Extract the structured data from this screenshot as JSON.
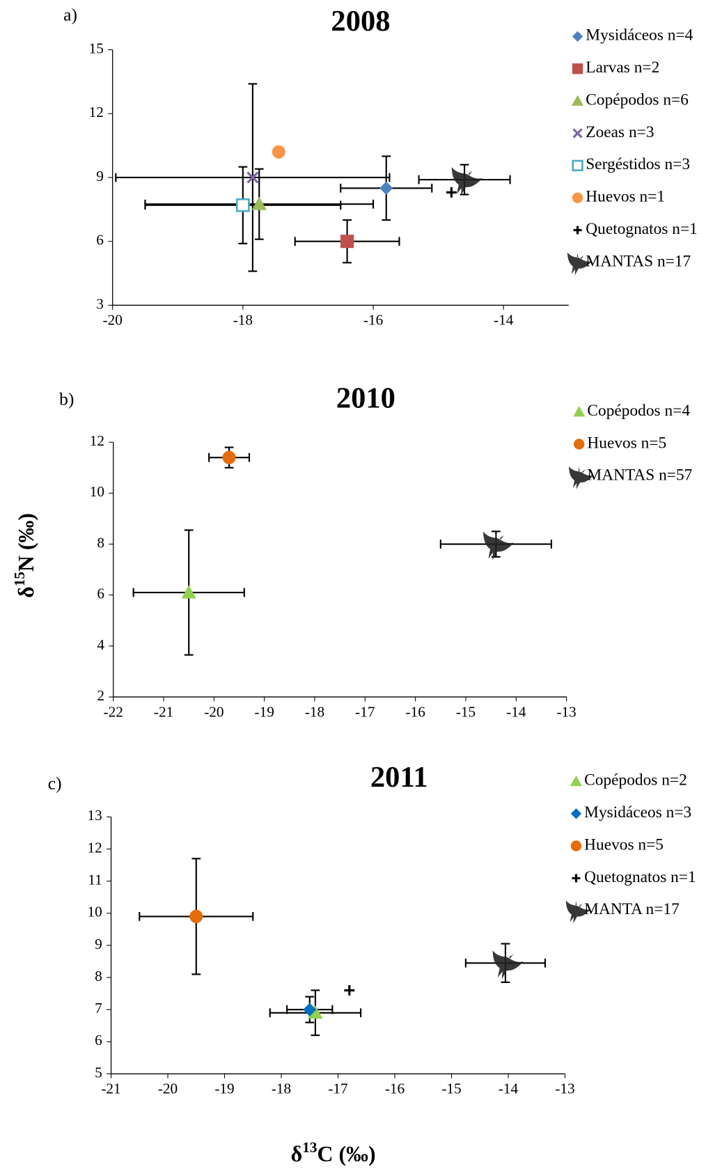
{
  "chart_data": [
    {
      "type": "scatter",
      "panel": "a)",
      "title": "2008",
      "xlim": [
        -20,
        -13
      ],
      "ylim": [
        3,
        15
      ],
      "xticks": [
        -20,
        -18,
        -16,
        -14
      ],
      "yticks": [
        3,
        6,
        9,
        12,
        15
      ],
      "series": [
        {
          "name": "Mysidáceos n=4",
          "color": "#4f81bd",
          "marker": "diamond",
          "x": [
            -15.8
          ],
          "y": [
            8.5
          ],
          "xerr": [
            0.7
          ],
          "yerr": [
            1.5
          ]
        },
        {
          "name": "Larvas n=2",
          "color": "#c0504d",
          "marker": "square",
          "x": [
            -16.4
          ],
          "y": [
            6.0
          ],
          "xerr": [
            0.8
          ],
          "yerr": [
            1.0
          ]
        },
        {
          "name": "Copépodos n=6",
          "color": "#9bbb59",
          "marker": "triangle",
          "x": [
            -17.75
          ],
          "y": [
            7.75
          ],
          "xerr": [
            1.75
          ],
          "yerr": [
            1.65
          ]
        },
        {
          "name": "Zoeas n=3",
          "color": "#8064a2",
          "marker": "x",
          "x": [
            -17.85
          ],
          "y": [
            9.0
          ],
          "xerr": [
            2.1
          ],
          "yerr": [
            4.4
          ]
        },
        {
          "name": "Sergéstidos n=3",
          "color": "#4bacc6",
          "marker": "open-square",
          "x": [
            -18.0
          ],
          "y": [
            7.7
          ],
          "xerr": [
            1.5
          ],
          "yerr": [
            1.8
          ]
        },
        {
          "name": "Huevos n=1",
          "color": "#f79646",
          "marker": "circle",
          "x": [
            -17.45
          ],
          "y": [
            10.2
          ]
        },
        {
          "name": "Quetognatos n=1",
          "color": "#000000",
          "marker": "plus",
          "x": [
            -14.8
          ],
          "y": [
            8.3
          ]
        },
        {
          "name": "MANTAS n=17",
          "color": "#222222",
          "marker": "manta",
          "x": [
            -14.6
          ],
          "y": [
            8.9
          ],
          "xerr": [
            0.7
          ],
          "yerr": [
            0.7
          ]
        }
      ]
    },
    {
      "type": "scatter",
      "panel": "b)",
      "title": "2010",
      "xlim": [
        -22,
        -13
      ],
      "ylim": [
        2,
        12
      ],
      "xticks": [
        -22,
        -21,
        -20,
        -19,
        -18,
        -17,
        -16,
        -15,
        -14,
        -13
      ],
      "yticks": [
        2,
        4,
        6,
        8,
        10,
        12
      ],
      "ylabel": {
        "prefix": "δ",
        "sup": "15",
        "suffix": "N (‰)"
      },
      "series": [
        {
          "name": "Copépodos n=4",
          "color": "#92d050",
          "marker": "triangle",
          "x": [
            -20.5
          ],
          "y": [
            6.1
          ],
          "xerr": [
            1.1
          ],
          "yerr": [
            2.45
          ]
        },
        {
          "name": "Huevos n=5",
          "color": "#e46c0a",
          "marker": "circle",
          "x": [
            -19.7
          ],
          "y": [
            11.4
          ],
          "xerr": [
            0.4
          ],
          "yerr": [
            0.4
          ]
        },
        {
          "name": "MANTAS n=57",
          "color": "#222222",
          "marker": "manta",
          "x": [
            -14.4
          ],
          "y": [
            8.0
          ],
          "xerr": [
            1.1
          ],
          "yerr": [
            0.5
          ]
        }
      ]
    },
    {
      "type": "scatter",
      "panel": "c)",
      "title": "2011",
      "xlim": [
        -21,
        -13
      ],
      "ylim": [
        5,
        13
      ],
      "xticks": [
        -21,
        -20,
        -19,
        -18,
        -17,
        -16,
        -15,
        -14,
        -13
      ],
      "yticks": [
        5,
        6,
        7,
        8,
        9,
        10,
        11,
        12,
        13
      ],
      "xlabel": {
        "prefix": "δ",
        "sup": "13",
        "suffix": "C (‰)"
      },
      "series": [
        {
          "name": "Copépodos n=2",
          "color": "#92d050",
          "marker": "triangle",
          "x": [
            -17.4
          ],
          "y": [
            6.9
          ],
          "xerr": [
            0.8
          ],
          "yerr": [
            0.7
          ]
        },
        {
          "name": "Mysidáceos n=3",
          "color": "#0070c0",
          "marker": "diamond",
          "x": [
            -17.5
          ],
          "y": [
            7.0
          ],
          "xerr": [
            0.4
          ],
          "yerr": [
            0.4
          ]
        },
        {
          "name": "Huevos n=5",
          "color": "#e46c0a",
          "marker": "circle",
          "x": [
            -19.5
          ],
          "y": [
            9.9
          ],
          "xerr": [
            1.0
          ],
          "yerr": [
            1.8
          ]
        },
        {
          "name": "Quetognatos n=1",
          "color": "#000000",
          "marker": "plus",
          "x": [
            -16.8
          ],
          "y": [
            7.6
          ]
        },
        {
          "name": "MANTA n=17",
          "color": "#222222",
          "marker": "manta",
          "x": [
            -14.05
          ],
          "y": [
            8.45
          ],
          "xerr": [
            0.7
          ],
          "yerr": [
            0.6
          ]
        }
      ]
    }
  ]
}
